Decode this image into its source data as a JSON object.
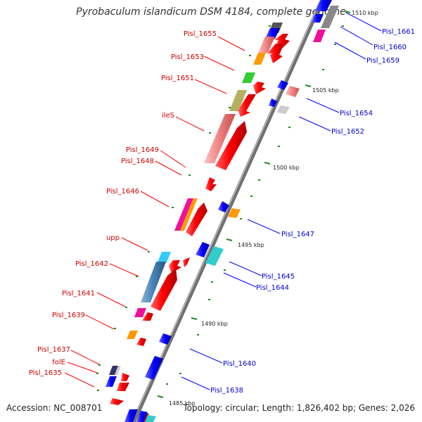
{
  "title": "Pyrobaculum islandicum DSM 4184, complete genome",
  "accession": "Accession: NC_008701",
  "topology": "Topology: circular; Length: 1,826,402 bp; Genes: 2,026",
  "colors": {
    "label_left": "#cc0000",
    "label_right": "#0000cc",
    "backbone": "#888888",
    "tick": "#228b22"
  },
  "ticks": [
    "1510 kbp",
    "1505 kbp",
    "1500 kbp",
    "1495 kbp",
    "1490 kbp",
    "1485 kbp"
  ],
  "left_labels": [
    "Pisl_1655",
    "Pisl_1653",
    "Pisl_1651",
    "ileS",
    "Pisl_1649",
    "Pisl_1648",
    "Pisl_1646",
    "upp",
    "Pisl_1642",
    "Pisl_1641",
    "Pisl_1639",
    "Pisl_1637",
    "folE",
    "Pisl_1635"
  ],
  "right_labels": [
    "Pisl_1661",
    "Pisl_1660",
    "Pisl_1659",
    "Pisl_1654",
    "Pisl_1652",
    "Pisl_1647",
    "Pisl_1645",
    "Pisl_1644",
    "Pisl_1640",
    "Pisl_1638"
  ]
}
